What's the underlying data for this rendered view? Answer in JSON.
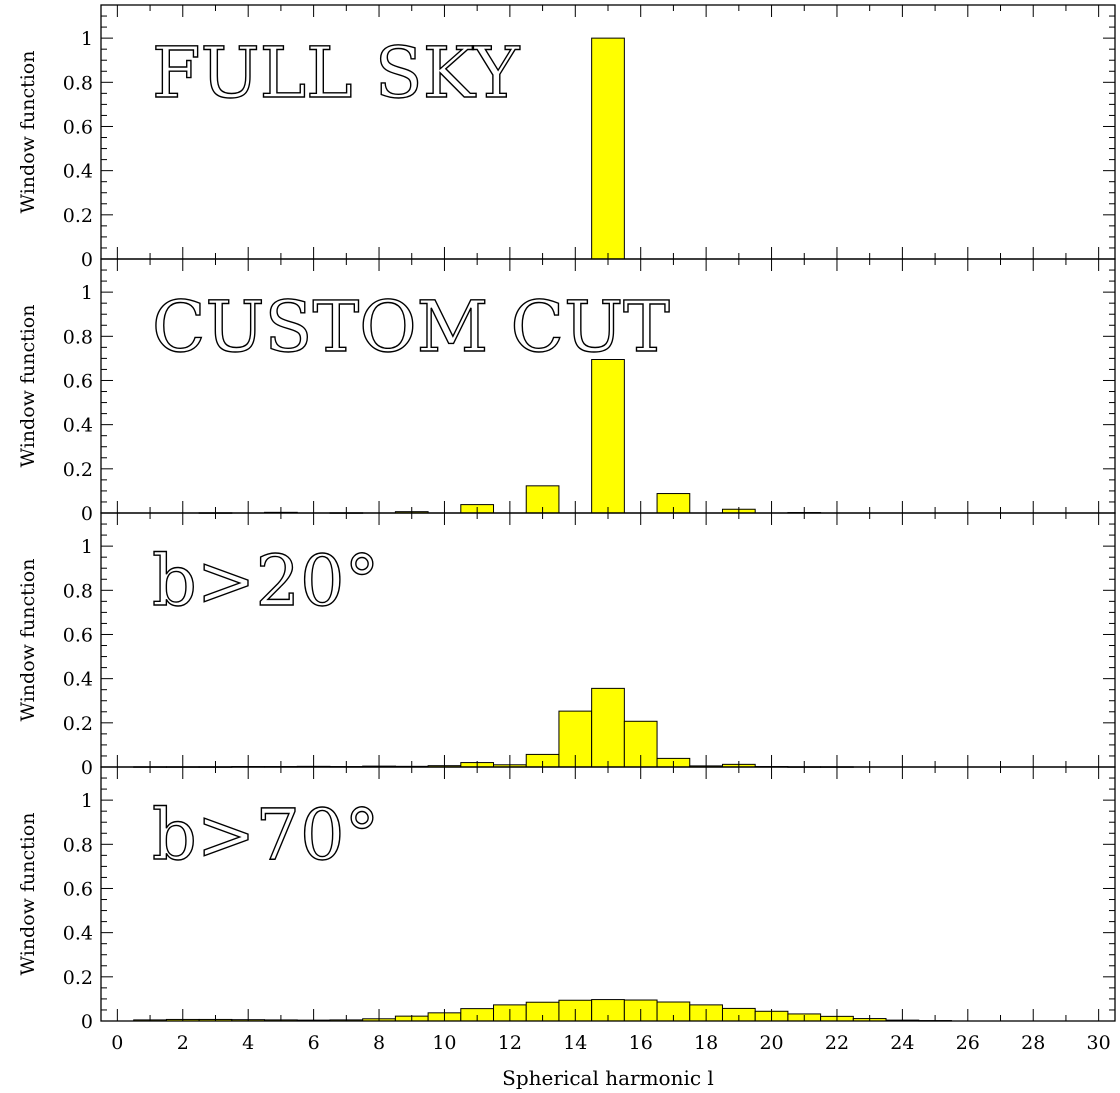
{
  "chart_data": {
    "type": "bar",
    "fill_color": "#ffff00",
    "edge_color": "#000000",
    "x": [
      0,
      1,
      2,
      3,
      4,
      5,
      6,
      7,
      8,
      9,
      10,
      11,
      12,
      13,
      14,
      15,
      16,
      17,
      18,
      19,
      20,
      21,
      22,
      23,
      24,
      25,
      26,
      27,
      28,
      29,
      30
    ],
    "xlim": [
      -0.5,
      30.5
    ],
    "ylim": [
      0,
      1.15
    ],
    "xlabel": "Spherical harmonic l",
    "ylabel": "Window function",
    "xticks": [
      "0",
      "2",
      "4",
      "6",
      "8",
      "10",
      "12",
      "14",
      "16",
      "18",
      "20",
      "22",
      "24",
      "26",
      "28",
      "30"
    ],
    "yticks": [
      "0",
      "0.2",
      "0.4",
      "0.6",
      "0.8",
      "1"
    ],
    "panels": [
      {
        "title": "FULL SKY",
        "values": [
          0,
          0,
          0,
          0,
          0,
          0,
          0,
          0,
          0,
          0,
          0,
          0,
          0,
          0,
          0,
          1.0,
          0,
          0,
          0,
          0,
          0,
          0,
          0,
          0,
          0,
          0,
          0,
          0,
          0,
          0,
          0
        ]
      },
      {
        "title": "CUSTOM CUT",
        "values": [
          0,
          0,
          0,
          0.001,
          0,
          0.003,
          0,
          0.001,
          0,
          0.006,
          0,
          0.038,
          0,
          0.123,
          0,
          0.695,
          0,
          0.088,
          0,
          0.017,
          0,
          0.002,
          0,
          0,
          0,
          0,
          0,
          0,
          0,
          0,
          0
        ]
      },
      {
        "title": "b>20°",
        "values": [
          0,
          0.001,
          0.001,
          0.001,
          0.002,
          0.002,
          0.003,
          0.002,
          0.004,
          0.003,
          0.006,
          0.02,
          0.01,
          0.057,
          0.253,
          0.356,
          0.207,
          0.039,
          0.005,
          0.012,
          0.002,
          0.001,
          0.001,
          0,
          0,
          0,
          0,
          0,
          0,
          0,
          0
        ]
      },
      {
        "title": "b>70°",
        "values": [
          0,
          0.005,
          0.007,
          0.007,
          0.006,
          0.005,
          0.004,
          0.005,
          0.01,
          0.022,
          0.037,
          0.056,
          0.073,
          0.085,
          0.094,
          0.097,
          0.095,
          0.086,
          0.073,
          0.057,
          0.044,
          0.032,
          0.021,
          0.011,
          0.004,
          0.002,
          0,
          0,
          0,
          0,
          0
        ]
      }
    ]
  }
}
